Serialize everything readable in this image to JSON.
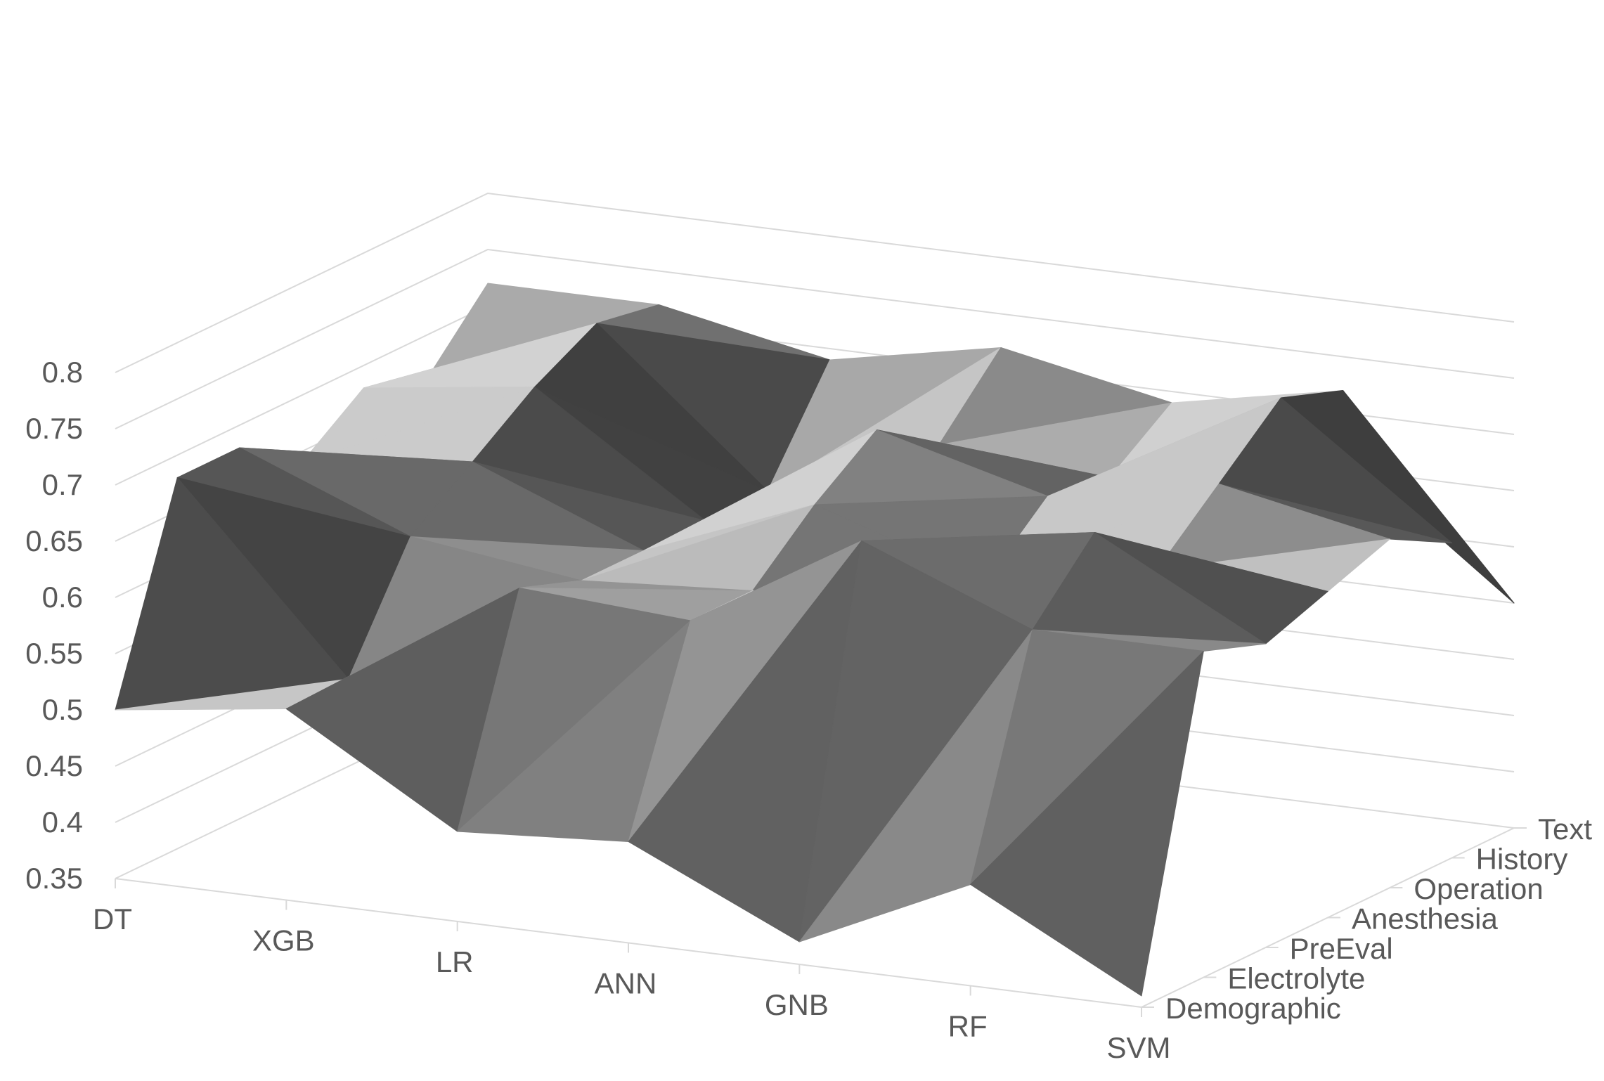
{
  "chart_data": {
    "type": "surface",
    "title": "",
    "xlabel": "",
    "ylabel": "",
    "zlabel": "",
    "x_categories": [
      "DT",
      "XGB",
      "LR",
      "ANN",
      "GNB",
      "RF",
      "SVM"
    ],
    "y_categories": [
      "Demographic",
      "Electrolyte",
      "PreEval",
      "Anesthesia",
      "Operation",
      "History",
      "Text"
    ],
    "z_ticks": [
      "0.35",
      "0.4",
      "0.45",
      "0.5",
      "0.55",
      "0.6",
      "0.65",
      "0.7",
      "0.75",
      "0.8"
    ],
    "zlim": [
      0.35,
      0.8
    ],
    "grid": true,
    "series": [
      {
        "name": "Demographic",
        "values": [
          0.5,
          0.52,
          0.43,
          0.44,
          0.37,
          0.44,
          0.36
        ]
      },
      {
        "name": "Electrolyte",
        "values": [
          0.68,
          0.52,
          0.62,
          0.61,
          0.7,
          0.64,
          0.64
        ]
      },
      {
        "name": "PreEval",
        "values": [
          0.68,
          0.62,
          0.6,
          0.61,
          0.63,
          0.7,
          0.62
        ]
      },
      {
        "name": "Anesthesia",
        "values": [
          0.64,
          0.66,
          0.6,
          0.66,
          0.61,
          0.64,
          0.64
        ]
      },
      {
        "name": "Operation",
        "values": [
          0.68,
          0.7,
          0.6,
          0.7,
          0.66,
          0.69,
          0.66
        ]
      },
      {
        "name": "History",
        "values": [
          0.66,
          0.73,
          0.6,
          0.66,
          0.65,
          0.74,
          0.63
        ]
      },
      {
        "name": "Text",
        "values": [
          0.72,
          0.72,
          0.69,
          0.72,
          0.69,
          0.72,
          0.55
        ]
      }
    ],
    "colors": {
      "light": "#dadada",
      "dark": "#3e3e3e",
      "grid": "#d9d9d9",
      "labels": "#595959"
    }
  }
}
